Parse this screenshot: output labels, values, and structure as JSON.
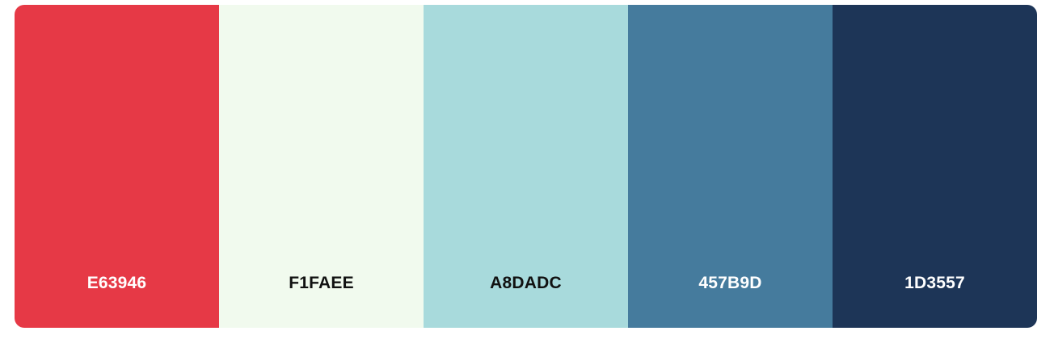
{
  "palette": {
    "swatches": [
      {
        "hex": "E63946",
        "color": "#E63946",
        "text_color": "#FFFFFF"
      },
      {
        "hex": "F1FAEE",
        "color": "#F1FAEE",
        "text_color": "#111111"
      },
      {
        "hex": "A8DADC",
        "color": "#A8DADC",
        "text_color": "#111111"
      },
      {
        "hex": "457B9D",
        "color": "#457B9D",
        "text_color": "#FFFFFF"
      },
      {
        "hex": "1D3557",
        "color": "#1D3557",
        "text_color": "#FFFFFF"
      }
    ]
  }
}
